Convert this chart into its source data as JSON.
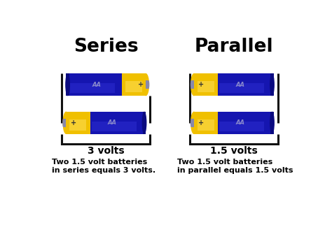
{
  "title_series": "Series",
  "title_parallel": "Parallel",
  "label_series": "3 volts",
  "label_parallel": "1.5 volts",
  "desc_series": "Two 1.5 volt batteries\nin series equals 3 volts.",
  "desc_parallel": "Two 1.5 volt batteries\nin parallel equals 1.5 volts",
  "battery_blue": "#1515b0",
  "battery_blue_dark": "#0a0a80",
  "battery_blue_light": "#3535dd",
  "battery_yellow": "#f0c000",
  "battery_yellow_light": "#ffe060",
  "battery_nub": "#8888aa",
  "battery_neg_strip": "#0a0a70",
  "wire_color": "#111111",
  "bg_color": "#ffffff",
  "text_color": "#000000"
}
